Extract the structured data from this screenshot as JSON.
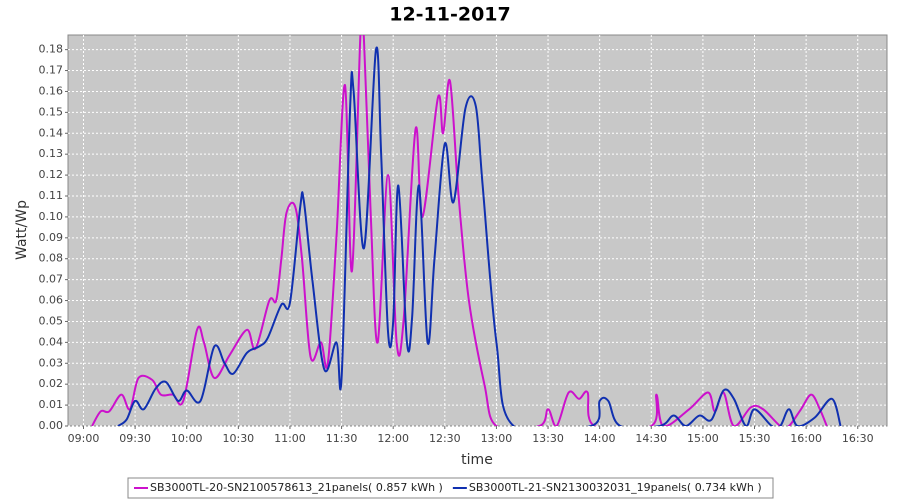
{
  "chart_data": {
    "type": "line",
    "title": "12-11-2017",
    "x_label": "time",
    "y_label": "Watt/Wp",
    "xlim": [
      "08:51",
      "16:47"
    ],
    "ylim": [
      0,
      0.187
    ],
    "xticks": [
      "09:00",
      "09:30",
      "10:00",
      "10:30",
      "11:00",
      "11:30",
      "12:00",
      "12:30",
      "13:00",
      "13:30",
      "14:00",
      "14:30",
      "15:00",
      "15:30",
      "16:00",
      "16:30"
    ],
    "yticks": [
      {
        "value": 0,
        "label": "0.00"
      },
      {
        "value": 0.01,
        "label": "0.01"
      },
      {
        "value": 0.02,
        "label": "0.02"
      },
      {
        "value": 0.03,
        "label": "0.03"
      },
      {
        "value": 0.04,
        "label": "0.04"
      },
      {
        "value": 0.05,
        "label": "0.05"
      },
      {
        "value": 0.06,
        "label": "0.06"
      },
      {
        "value": 0.07,
        "label": "0.07"
      },
      {
        "value": 0.08,
        "label": "0.08"
      },
      {
        "value": 0.09,
        "label": "0.09"
      },
      {
        "value": 0.1,
        "label": "0.10"
      },
      {
        "value": 0.11,
        "label": "0.11"
      },
      {
        "value": 0.12,
        "label": "0.12"
      },
      {
        "value": 0.13,
        "label": "0.13"
      },
      {
        "value": 0.14,
        "label": "0.14"
      },
      {
        "value": 0.15,
        "label": "0.15"
      },
      {
        "value": 0.16,
        "label": "0.16"
      },
      {
        "value": 0.17,
        "label": "0.17"
      },
      {
        "value": 0.18,
        "label": "0.18"
      }
    ],
    "grid": true,
    "legend": "bottom",
    "series": [
      {
        "name": "SB3000TL-20-SN2100578613_21panels( 0.857 kWh )",
        "color": "#cc11cc",
        "x": [
          "09:05",
          "09:10",
          "09:15",
          "09:22",
          "09:27",
          "09:32",
          "09:40",
          "09:45",
          "09:52",
          "09:58",
          "10:06",
          "10:10",
          "10:16",
          "10:25",
          "10:35",
          "10:40",
          "10:48",
          "10:52",
          "10:55",
          "10:58",
          "11:03",
          "11:07",
          "11:12",
          "11:18",
          "11:22",
          "11:27",
          "11:32",
          "11:36",
          "11:41",
          "11:43",
          "11:47",
          "11:51",
          "11:57",
          "12:02",
          "12:06",
          "12:13",
          "12:17",
          "12:26",
          "12:29",
          "12:33",
          "12:38",
          "12:44",
          "12:53",
          "13:00",
          "13:25",
          "13:30",
          "13:35",
          "13:42",
          "13:48",
          "13:53",
          "13:57",
          "14:30",
          "14:33",
          "14:37",
          "14:52",
          "15:03",
          "15:07",
          "15:12",
          "15:18",
          "15:28",
          "15:35",
          "15:45",
          "15:50",
          "15:57",
          "16:03",
          "16:08",
          "16:12"
        ],
        "values": [
          0,
          0.007,
          0.007,
          0.015,
          0.008,
          0.023,
          0.022,
          0.015,
          0.015,
          0.012,
          0.046,
          0.04,
          0.023,
          0.034,
          0.046,
          0.037,
          0.06,
          0.06,
          0.08,
          0.102,
          0.105,
          0.08,
          0.033,
          0.04,
          0.03,
          0.09,
          0.163,
          0.074,
          0.188,
          0.185,
          0.1,
          0.04,
          0.12,
          0.04,
          0.05,
          0.142,
          0.1,
          0.157,
          0.14,
          0.165,
          0.11,
          0.06,
          0.02,
          0,
          0,
          0.008,
          0,
          0.016,
          0.013,
          0.016,
          0,
          0,
          0.015,
          0,
          0.008,
          0.016,
          0.007,
          0.016,
          0,
          0.009,
          0.008,
          0,
          0,
          0.008,
          0.015,
          0.008,
          0
        ]
      },
      {
        "name": "SB3000TL-21-SN2130032031_19panels( 0.734 kWh )",
        "color": "#1030b0",
        "x": [
          "09:20",
          "09:25",
          "09:30",
          "09:35",
          "09:42",
          "09:48",
          "09:55",
          "10:00",
          "10:08",
          "10:16",
          "10:22",
          "10:27",
          "10:35",
          "10:42",
          "10:47",
          "10:55",
          "11:00",
          "11:06",
          "11:08",
          "11:13",
          "11:20",
          "11:27",
          "11:30",
          "11:35",
          "11:37",
          "11:43",
          "11:50",
          "11:53",
          "11:57",
          "12:00",
          "12:03",
          "12:08",
          "12:11",
          "12:15",
          "12:20",
          "12:24",
          "12:30",
          "12:35",
          "12:42",
          "12:48",
          "12:52",
          "13:00",
          "13:10",
          "13:55",
          "14:00",
          "14:05",
          "14:12",
          "14:35",
          "14:43",
          "14:50",
          "14:58",
          "15:05",
          "15:12",
          "15:18",
          "15:25",
          "15:30",
          "15:40",
          "15:45",
          "15:50",
          "15:55",
          "16:05",
          "16:15",
          "16:20"
        ],
        "values": [
          0,
          0.003,
          0.012,
          0.008,
          0.018,
          0.021,
          0.012,
          0.017,
          0.012,
          0.038,
          0.03,
          0.025,
          0.035,
          0.038,
          0.042,
          0.058,
          0.059,
          0.105,
          0.108,
          0.07,
          0.027,
          0.04,
          0.023,
          0.153,
          0.16,
          0.085,
          0.18,
          0.13,
          0.045,
          0.05,
          0.115,
          0.04,
          0.052,
          0.115,
          0.04,
          0.08,
          0.135,
          0.107,
          0.152,
          0.153,
          0.115,
          0.04,
          0,
          0,
          0.012,
          0.012,
          0,
          0,
          0.005,
          0,
          0.005,
          0.003,
          0.017,
          0.013,
          0,
          0.008,
          0,
          0,
          0.008,
          0,
          0.004,
          0.013,
          0
        ]
      }
    ]
  }
}
